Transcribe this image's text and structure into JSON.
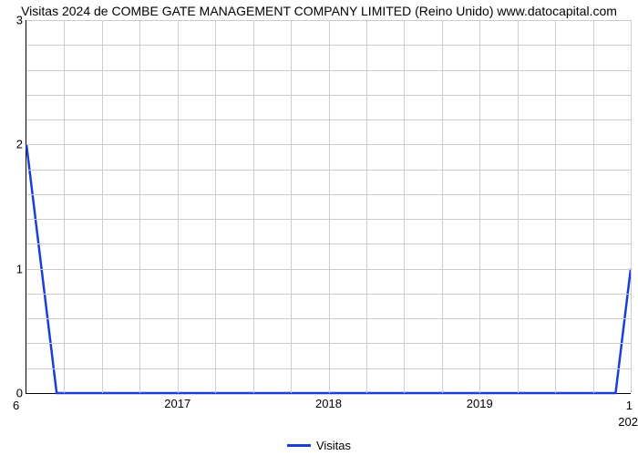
{
  "chart": {
    "type": "line",
    "title": "Visitas 2024 de COMBE GATE MANAGEMENT COMPANY LIMITED (Reino Unido) www.datocapital.com",
    "title_fontsize": 14,
    "title_color": "#000000",
    "background_color": "#ffffff",
    "grid_color": "#cccccc",
    "axis_color": "#000000",
    "plot_border_color": "#cccccc",
    "y": {
      "min": 0,
      "max": 3,
      "ticks": [
        0,
        1,
        2,
        3
      ],
      "tick_labels": [
        "0",
        "1",
        "2",
        "3"
      ],
      "label_fontsize": 13,
      "minor_grid_count": 4
    },
    "x": {
      "min": 2016,
      "max": 2020,
      "ticks": [
        2017,
        2018,
        2019
      ],
      "tick_labels": [
        "2017",
        "2018",
        "2019"
      ],
      "minor_per_major": 4,
      "label_fontsize": 13
    },
    "corner_labels": {
      "bottom_left": "6",
      "bottom_right": "1",
      "right_axis_label": "202"
    },
    "series": [
      {
        "name": "Visitas",
        "color": "#1a3fd6",
        "line_width": 2.5,
        "points": [
          {
            "x": 2016.0,
            "y": 2.0
          },
          {
            "x": 2016.2,
            "y": 0.0
          },
          {
            "x": 2019.9,
            "y": 0.0
          },
          {
            "x": 2020.0,
            "y": 1.0
          }
        ]
      }
    ],
    "legend": {
      "label": "Visitas",
      "position": "bottom-center",
      "fontsize": 13
    }
  }
}
